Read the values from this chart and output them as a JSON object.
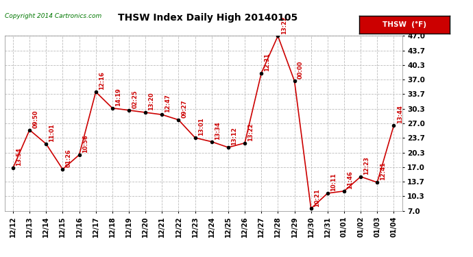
{
  "title": "THSW Index Daily High 20140105",
  "copyright": "Copyright 2014 Cartronics.com",
  "legend_label": "THSW  (°F)",
  "dates": [
    "12/12",
    "12/13",
    "12/14",
    "12/15",
    "12/16",
    "12/17",
    "12/18",
    "12/19",
    "12/20",
    "12/21",
    "12/22",
    "12/23",
    "12/24",
    "12/25",
    "12/26",
    "12/27",
    "12/28",
    "12/29",
    "12/30",
    "12/31",
    "01/01",
    "01/02",
    "01/03",
    "01/04"
  ],
  "values": [
    16.8,
    25.5,
    22.3,
    16.5,
    19.8,
    34.2,
    30.5,
    30.0,
    29.5,
    29.0,
    27.8,
    23.7,
    22.8,
    21.5,
    22.5,
    38.5,
    47.0,
    36.7,
    7.5,
    11.0,
    11.5,
    14.8,
    13.5,
    26.5
  ],
  "times": [
    "13:54",
    "09:50",
    "11:01",
    "01:26",
    "10:56",
    "12:16",
    "14:19",
    "02:25",
    "13:20",
    "12:47",
    "09:27",
    "13:01",
    "13:34",
    "13:12",
    "13:22",
    "12:31",
    "13:22",
    "00:00",
    "10:21",
    "10:11",
    "11:46",
    "12:23",
    "12:41",
    "13:44"
  ],
  "ylim": [
    7.0,
    47.0
  ],
  "yticks": [
    7.0,
    10.3,
    13.7,
    17.0,
    20.3,
    23.7,
    27.0,
    30.3,
    33.7,
    37.0,
    40.3,
    43.7,
    47.0
  ],
  "line_color": "#cc0000",
  "marker_color": "#000000",
  "grid_color": "#bbbbbb",
  "bg_color": "#ffffff",
  "title_color": "#000000",
  "legend_bg": "#cc0000",
  "legend_text_color": "#ffffff",
  "copyright_color": "#007700",
  "annotation_rotation": 90,
  "annotation_fontsize": 6.0,
  "title_fontsize": 10,
  "xtick_fontsize": 7,
  "ytick_fontsize": 7.5
}
